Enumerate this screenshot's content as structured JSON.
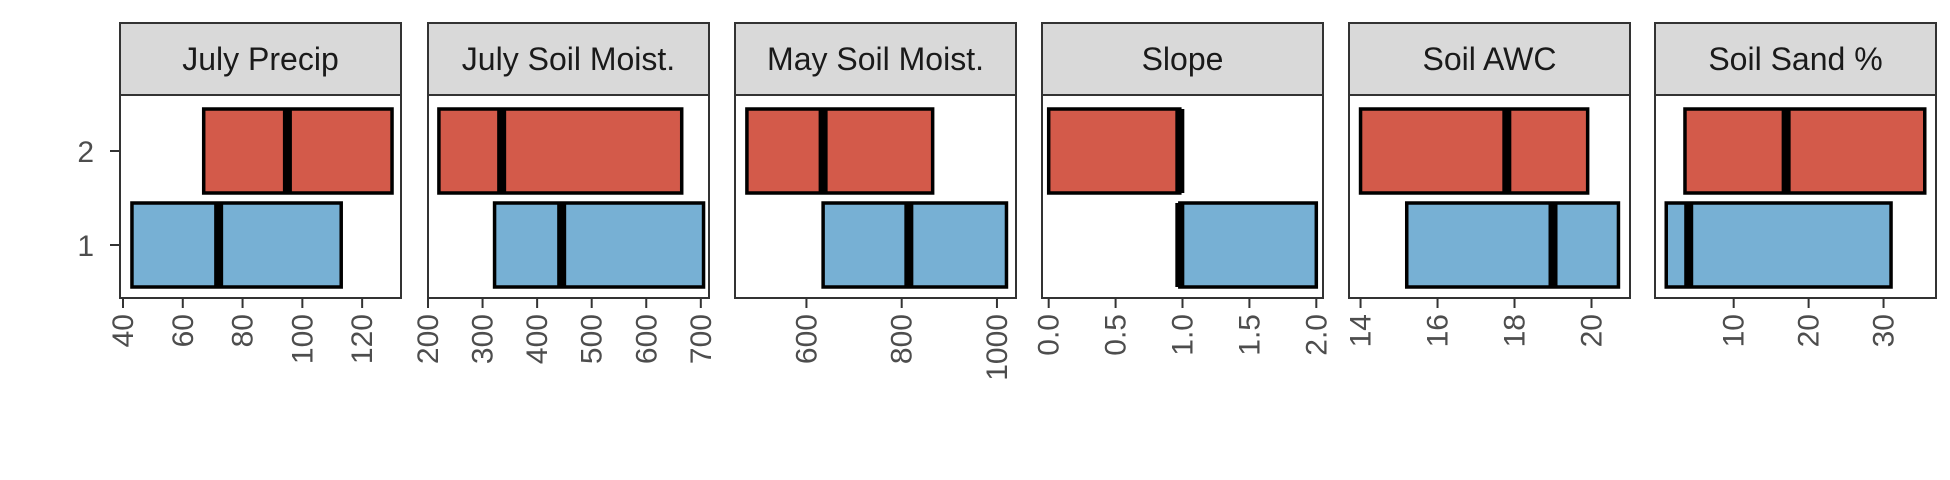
{
  "chart_data": {
    "type": "boxplot",
    "legend": "none",
    "grid": false,
    "y_categories": [
      "1",
      "2"
    ],
    "colors": {
      "1": "#77b0d4",
      "2": "#d35a4a"
    },
    "facets": [
      {
        "title": "July Precip",
        "xlim": [
          39,
          133
        ],
        "ticks": [
          40,
          60,
          80,
          100,
          120
        ],
        "tick_labels": [
          "40",
          "60",
          "80",
          "100",
          "120"
        ],
        "boxes": [
          {
            "group": "1",
            "q1": 43,
            "median": 72,
            "q3": 113
          },
          {
            "group": "2",
            "q1": 67,
            "median": 95,
            "q3": 130
          }
        ]
      },
      {
        "title": "July Soil Moist.",
        "xlim": [
          200,
          715
        ],
        "ticks": [
          200,
          300,
          400,
          500,
          600,
          700
        ],
        "tick_labels": [
          "200",
          "300",
          "400",
          "500",
          "600",
          "700"
        ],
        "boxes": [
          {
            "group": "1",
            "q1": 322,
            "median": 445,
            "q3": 705
          },
          {
            "group": "2",
            "q1": 220,
            "median": 335,
            "q3": 665
          }
        ]
      },
      {
        "title": "May Soil Moist.",
        "xlim": [
          450,
          1040
        ],
        "ticks": [
          600,
          800,
          1000
        ],
        "tick_labels": [
          "600",
          "800",
          "1000"
        ],
        "boxes": [
          {
            "group": "1",
            "q1": 635,
            "median": 815,
            "q3": 1020
          },
          {
            "group": "2",
            "q1": 475,
            "median": 635,
            "q3": 865
          }
        ]
      },
      {
        "title": "Slope",
        "xlim": [
          -0.05,
          2.05
        ],
        "ticks": [
          0,
          0.5,
          1,
          1.5,
          2
        ],
        "tick_labels": [
          "0.0",
          "0.5",
          "1.0",
          "1.5",
          "2.0"
        ],
        "boxes": [
          {
            "group": "1",
            "q1": 0.98,
            "median": 0.98,
            "q3": 2.0
          },
          {
            "group": "2",
            "q1": 0.0,
            "median": 0.98,
            "q3": 0.98
          }
        ]
      },
      {
        "title": "Soil AWC",
        "xlim": [
          13.7,
          21.0
        ],
        "ticks": [
          14,
          16,
          18,
          20
        ],
        "tick_labels": [
          "14",
          "16",
          "18",
          "20"
        ],
        "boxes": [
          {
            "group": "1",
            "q1": 15.2,
            "median": 19.0,
            "q3": 20.7
          },
          {
            "group": "2",
            "q1": 14.0,
            "median": 17.8,
            "q3": 19.9
          }
        ]
      },
      {
        "title": "Soil Sand %",
        "xlim": [
          -0.5,
          37
        ],
        "ticks": [
          10,
          20,
          30
        ],
        "tick_labels": [
          "10",
          "20",
          "30"
        ],
        "boxes": [
          {
            "group": "1",
            "q1": 1.0,
            "median": 4.0,
            "q3": 31.0
          },
          {
            "group": "2",
            "q1": 3.5,
            "median": 17.0,
            "q3": 35.5
          }
        ]
      }
    ]
  }
}
